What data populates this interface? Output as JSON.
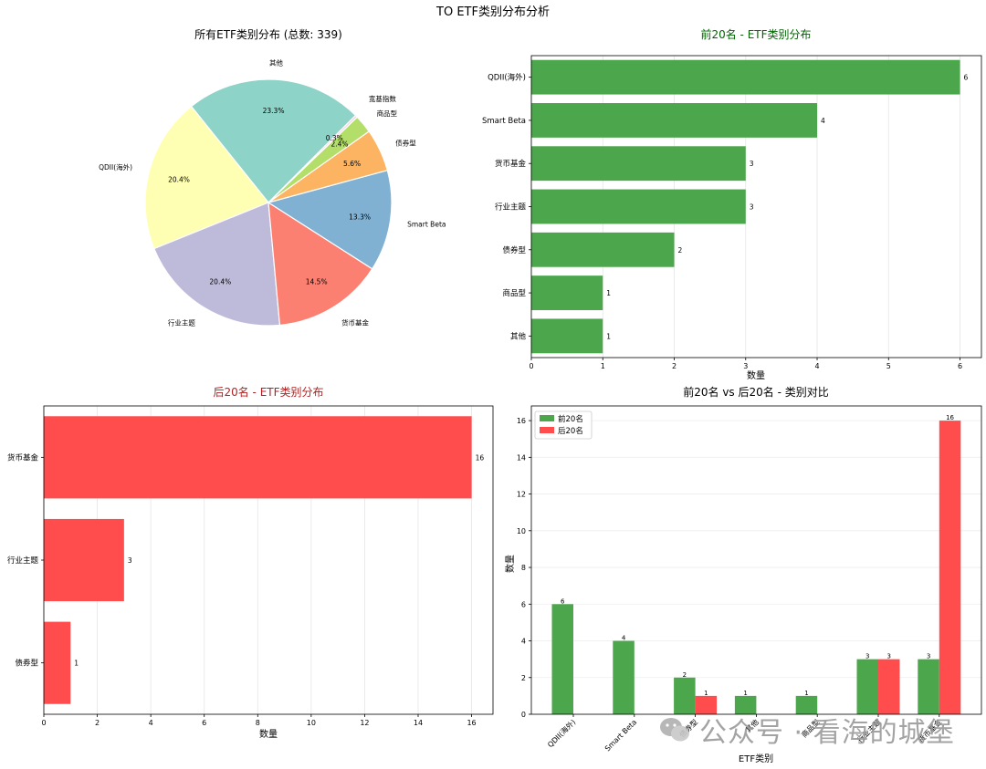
{
  "figure_title": "TO ETF类别分布分析",
  "watermark": "公众号 · 看海的城堡",
  "colors": {
    "green": "#4ca64c",
    "red": "#ff4d4d",
    "green_title": "#006400",
    "red_title": "#b22222"
  },
  "chart_data": [
    {
      "type": "pie",
      "title": "所有ETF类别分布 (总数: 339)",
      "slices": [
        {
          "label": "其他",
          "pct_text": "23.3%",
          "value": 23.3,
          "color": "#8dd3c7"
        },
        {
          "label": "QDII(海外)",
          "pct_text": "20.4%",
          "value": 20.4,
          "color": "#ffffb3"
        },
        {
          "label": "行业主题",
          "pct_text": "20.4%",
          "value": 20.4,
          "color": "#bebada"
        },
        {
          "label": "货币基金",
          "pct_text": "14.5%",
          "value": 14.5,
          "color": "#fb8072"
        },
        {
          "label": "Smart Beta",
          "pct_text": "13.3%",
          "value": 13.3,
          "color": "#80b1d3"
        },
        {
          "label": "债券型",
          "pct_text": "5.6%",
          "value": 5.6,
          "color": "#fdb462"
        },
        {
          "label": "商品型",
          "pct_text": "2.4%",
          "value": 2.4,
          "color": "#b3de69"
        },
        {
          "label": "宽基指数",
          "pct_text": "0.3%",
          "value": 0.3,
          "color": "#fccde5"
        }
      ]
    },
    {
      "type": "bar",
      "orientation": "horizontal",
      "title": "前20名 - ETF类别分布",
      "categories": [
        "QDII(海外)",
        "Smart Beta",
        "货币基金",
        "行业主题",
        "债券型",
        "商品型",
        "其他"
      ],
      "values": [
        6,
        4,
        3,
        3,
        2,
        1,
        1
      ],
      "xlabel": "数量",
      "xlim": [
        0,
        6.3
      ],
      "xticks": [
        "0",
        "1",
        "2",
        "3",
        "4",
        "5",
        "6"
      ],
      "value_labels": [
        "6",
        "4",
        "3",
        "3",
        "2",
        "1",
        "1"
      ]
    },
    {
      "type": "bar",
      "orientation": "horizontal",
      "title": "后20名 - ETF类别分布",
      "categories": [
        "货币基金",
        "行业主题",
        "债券型"
      ],
      "values": [
        16,
        3,
        1
      ],
      "xlabel": "数量",
      "xlim": [
        0,
        16.8
      ],
      "xticks": [
        "0",
        "2",
        "4",
        "6",
        "8",
        "10",
        "12",
        "14",
        "16"
      ],
      "value_labels": [
        "16",
        "3",
        "1"
      ]
    },
    {
      "type": "bar",
      "orientation": "vertical",
      "title": "前20名 vs 后20名 - 类别对比",
      "categories": [
        "QDII(海外)",
        "Smart Beta",
        "债券型",
        "其他",
        "商品型",
        "行业主题",
        "货币基金"
      ],
      "series": [
        {
          "name": "前20名",
          "values": [
            6,
            4,
            2,
            1,
            1,
            3,
            3
          ],
          "labels": [
            "6",
            "4",
            "2",
            "1",
            "1",
            "3",
            "3"
          ]
        },
        {
          "name": "后20名",
          "values": [
            0,
            0,
            1,
            0,
            0,
            3,
            16
          ],
          "labels": [
            "",
            "",
            "1",
            "",
            "",
            "3",
            "16"
          ]
        }
      ],
      "xlabel": "ETF类别",
      "ylabel": "数量",
      "ylim": [
        0,
        16.8
      ],
      "yticks": [
        "0",
        "2",
        "4",
        "6",
        "8",
        "10",
        "12",
        "14",
        "16"
      ],
      "legend": "top-left"
    }
  ]
}
